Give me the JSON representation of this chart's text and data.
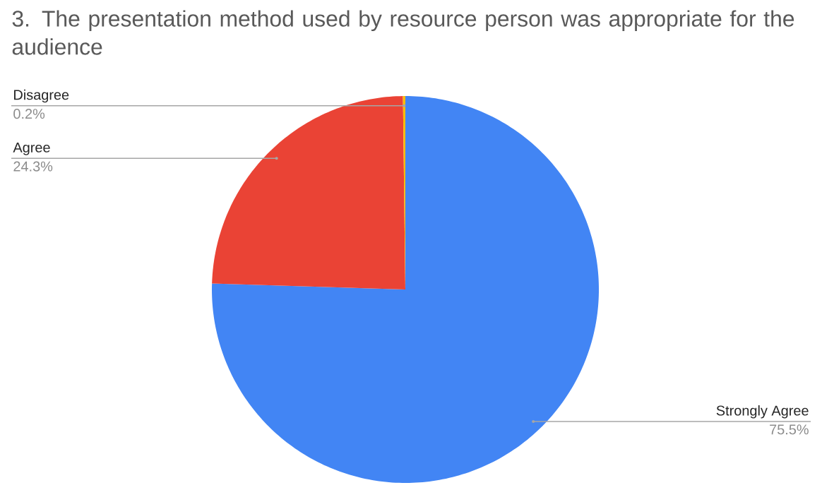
{
  "chart_data": {
    "type": "pie",
    "title": "3. The presentation method used by resource person was appropriate for the audience",
    "categories": [
      "Strongly Agree",
      "Agree",
      "Disagree"
    ],
    "values": [
      75.5,
      24.3,
      0.2
    ],
    "value_labels": [
      "75.5%",
      "24.3%",
      "0.2%"
    ],
    "colors": [
      "#4285f4",
      "#ea4335",
      "#fbbc04"
    ]
  }
}
